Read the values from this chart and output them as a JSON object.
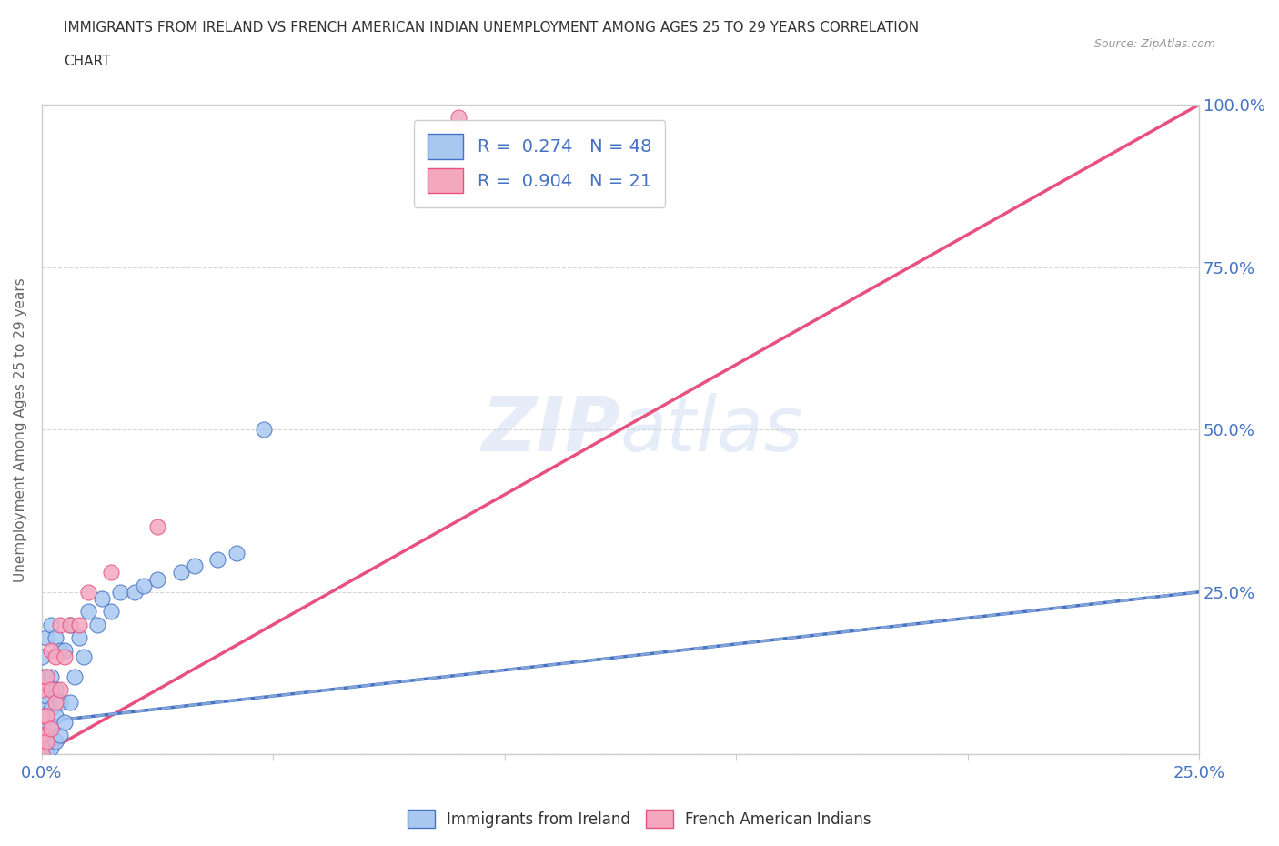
{
  "title_line1": "IMMIGRANTS FROM IRELAND VS FRENCH AMERICAN INDIAN UNEMPLOYMENT AMONG AGES 25 TO 29 YEARS CORRELATION",
  "title_line2": "CHART",
  "source": "Source: ZipAtlas.com",
  "ylabel": "Unemployment Among Ages 25 to 29 years",
  "xlim": [
    0,
    0.25
  ],
  "ylim": [
    0,
    1.0
  ],
  "blue_color": "#a8c8f0",
  "pink_color": "#f4a8c0",
  "blue_line_color": "#4472c4",
  "pink_line_color": "#e85080",
  "blue_dash_color": "#a0b8e0",
  "R_blue": 0.274,
  "N_blue": 48,
  "R_pink": 0.904,
  "N_pink": 21,
  "legend_label_blue": "Immigrants from Ireland",
  "legend_label_pink": "French American Indians",
  "watermark_zip": "ZIP",
  "watermark_atlas": "atlas",
  "background_color": "#ffffff",
  "tick_color": "#4472c4",
  "grid_color": "#cccccc",
  "ylabel_color": "#666666",
  "title_color": "#333333",
  "source_color": "#999999"
}
